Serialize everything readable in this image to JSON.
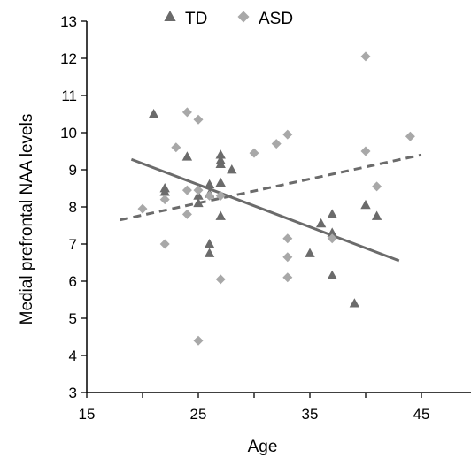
{
  "chart_data": {
    "type": "scatter",
    "xlabel": "Age",
    "ylabel": "Medial prefrontal NAA levels",
    "xlim": [
      15,
      45
    ],
    "ylim": [
      3,
      13
    ],
    "x_ticks": [
      "15",
      "25",
      "35",
      "45"
    ],
    "y_ticks": [
      "3",
      "4",
      "5",
      "6",
      "7",
      "8",
      "9",
      "10",
      "11",
      "12",
      "13"
    ],
    "grid": false,
    "legend_position": "top",
    "colors": {
      "td": "#6b6b6b",
      "asd": "#a8a8a8"
    },
    "series": [
      {
        "name": "TD",
        "marker": "triangle",
        "trendline": {
          "style": "solid",
          "x": [
            19,
            43
          ],
          "y": [
            9.28,
            6.55
          ]
        },
        "points": [
          [
            21,
            10.5
          ],
          [
            22,
            8.5
          ],
          [
            22,
            8.4
          ],
          [
            24,
            9.35
          ],
          [
            25,
            8.3
          ],
          [
            25,
            8.1
          ],
          [
            26,
            8.6
          ],
          [
            26,
            8.35
          ],
          [
            26,
            7.0
          ],
          [
            26,
            6.75
          ],
          [
            27,
            9.4
          ],
          [
            27,
            9.25
          ],
          [
            27,
            9.15
          ],
          [
            27,
            8.65
          ],
          [
            27,
            7.75
          ],
          [
            28,
            9.0
          ],
          [
            35,
            6.75
          ],
          [
            36,
            7.55
          ],
          [
            37,
            7.8
          ],
          [
            37,
            7.3
          ],
          [
            37,
            6.15
          ],
          [
            39,
            5.4
          ],
          [
            40,
            8.05
          ],
          [
            41,
            7.75
          ]
        ]
      },
      {
        "name": "ASD",
        "marker": "diamond",
        "trendline": {
          "style": "dashed",
          "x": [
            18,
            45
          ],
          "y": [
            7.65,
            9.4
          ]
        },
        "points": [
          [
            20,
            7.95
          ],
          [
            22,
            8.2
          ],
          [
            22,
            7.0
          ],
          [
            23,
            9.6
          ],
          [
            24,
            10.55
          ],
          [
            24,
            8.45
          ],
          [
            24,
            7.8
          ],
          [
            25,
            10.35
          ],
          [
            25,
            8.45
          ],
          [
            25,
            4.4
          ],
          [
            26,
            8.3
          ],
          [
            27,
            8.3
          ],
          [
            27,
            6.05
          ],
          [
            30,
            9.45
          ],
          [
            32,
            9.7
          ],
          [
            33,
            9.95
          ],
          [
            33,
            7.15
          ],
          [
            33,
            6.65
          ],
          [
            33,
            6.1
          ],
          [
            37,
            7.15
          ],
          [
            40,
            12.05
          ],
          [
            40,
            9.5
          ],
          [
            41,
            8.55
          ],
          [
            44,
            9.9
          ]
        ]
      }
    ]
  }
}
